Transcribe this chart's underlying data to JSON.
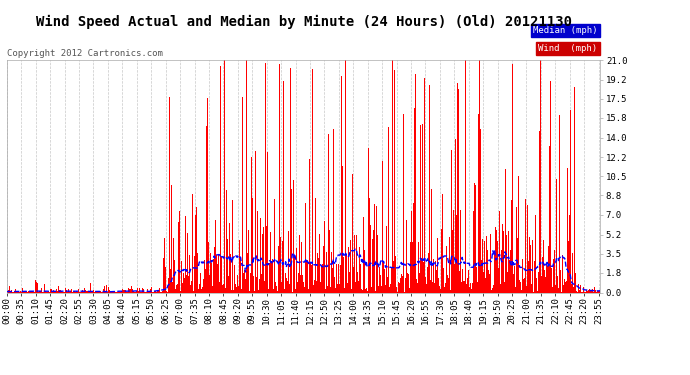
{
  "title": "Wind Speed Actual and Median by Minute (24 Hours) (Old) 20121130",
  "copyright": "Copyright 2012 Cartronics.com",
  "yticks": [
    0.0,
    1.8,
    3.5,
    5.2,
    7.0,
    8.8,
    10.5,
    12.2,
    14.0,
    15.8,
    17.5,
    19.2,
    21.0
  ],
  "ymin": 0.0,
  "ymax": 21.0,
  "bar_color": "#ff0000",
  "median_color": "#0000ff",
  "bg_color": "#ffffff",
  "grid_color": "#c8c8c8",
  "title_fontsize": 10,
  "copyright_fontsize": 6.5,
  "tick_fontsize": 6.5,
  "num_minutes": 1440,
  "tick_interval_minutes": 35
}
